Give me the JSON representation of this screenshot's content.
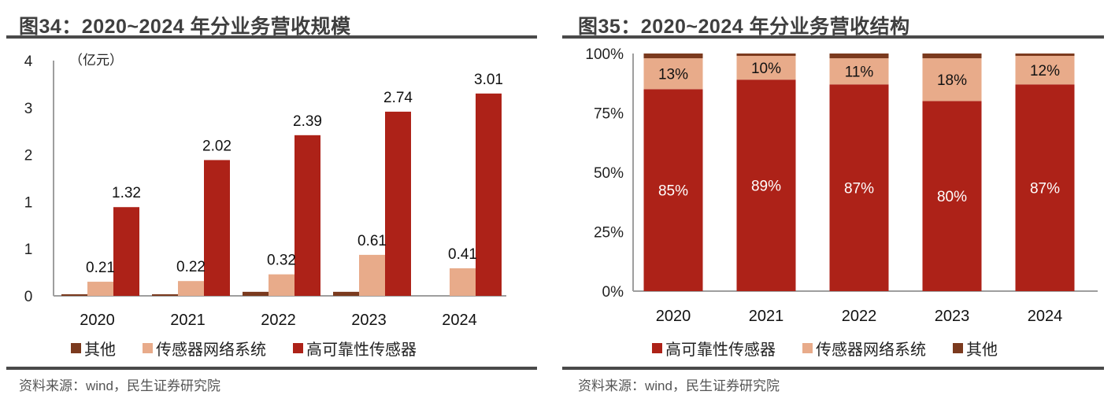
{
  "colors": {
    "other": "#7b3a1e",
    "network": "#e8ab8a",
    "sensor": "#ad2218",
    "axis": "#9e9e9e"
  },
  "chart_data": [
    {
      "type": "bar",
      "title": "图34：2020~2024 年分业务营收规模",
      "unit_label": "（亿元）",
      "xlabel": "",
      "ylabel": "亿元",
      "categories": [
        "2020",
        "2021",
        "2022",
        "2023",
        "2024"
      ],
      "ytick_labels": [
        "0",
        "1",
        "1",
        "2",
        "3",
        "4"
      ],
      "ylim": [
        0,
        3.5
      ],
      "series": [
        {
          "name": "其他",
          "color_key": "other",
          "values": [
            0.02,
            0.02,
            0.06,
            0.06,
            0.0
          ],
          "labels": [
            "",
            "",
            "",
            "",
            ""
          ]
        },
        {
          "name": "传感器网络系统",
          "color_key": "network",
          "values": [
            0.21,
            0.22,
            0.32,
            0.61,
            0.41
          ],
          "labels": [
            "0.21",
            "0.22",
            "0.32",
            "0.61",
            "0.41"
          ]
        },
        {
          "name": "高可靠性传感器",
          "color_key": "sensor",
          "values": [
            1.32,
            2.02,
            2.39,
            2.74,
            3.01
          ],
          "labels": [
            "1.32",
            "2.02",
            "2.39",
            "2.74",
            "3.01"
          ]
        }
      ],
      "legend_order": [
        "其他",
        "传感器网络系统",
        "高可靠性传感器"
      ],
      "legend_position": "bottom",
      "grid": false,
      "source": "资料来源：wind，民生证券研究院"
    },
    {
      "type": "bar",
      "stacked": true,
      "title": "图35：2020~2024 年分业务营收结构",
      "xlabel": "",
      "ylabel": "",
      "categories": [
        "2020",
        "2021",
        "2022",
        "2023",
        "2024"
      ],
      "ytick_labels": [
        "0%",
        "25%",
        "50%",
        "75%",
        "100%"
      ],
      "ylim": [
        0,
        100
      ],
      "series": [
        {
          "name": "高可靠性传感器",
          "color_key": "sensor",
          "values": [
            85,
            89,
            87,
            80,
            87
          ],
          "labels": [
            "85%",
            "89%",
            "87%",
            "80%",
            "87%"
          ]
        },
        {
          "name": "传感器网络系统",
          "color_key": "network",
          "values": [
            13,
            10,
            11,
            18,
            12
          ],
          "labels": [
            "13%",
            "10%",
            "11%",
            "18%",
            "12%"
          ]
        },
        {
          "name": "其他",
          "color_key": "other",
          "values": [
            2,
            1,
            2,
            2,
            1
          ],
          "labels": [
            "",
            "",
            "",
            "",
            ""
          ]
        }
      ],
      "legend_order": [
        "高可靠性传感器",
        "传感器网络系统",
        "其他"
      ],
      "legend_position": "bottom",
      "grid": false,
      "source": "资料来源：wind，民生证券研究院"
    }
  ]
}
